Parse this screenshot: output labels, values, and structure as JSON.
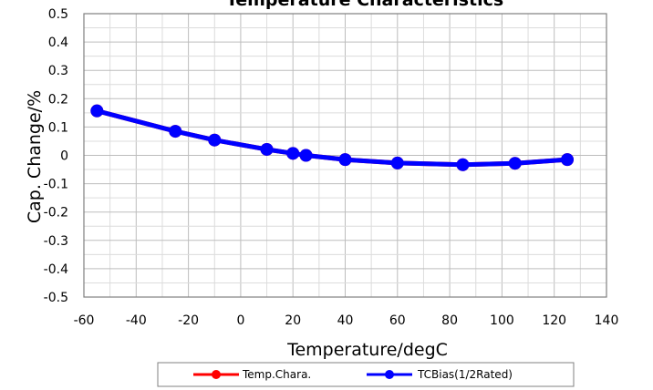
{
  "chart_data": {
    "type": "line",
    "title": "Temperature Characteristics",
    "xlabel": "Temperature/degC",
    "ylabel": "Cap. Change/%",
    "xlim": [
      -60,
      140
    ],
    "ylim": [
      -0.5,
      0.5
    ],
    "x_ticks": [
      -60,
      -40,
      -20,
      0,
      20,
      40,
      60,
      80,
      100,
      120,
      140
    ],
    "y_ticks": [
      0.5,
      0.4,
      0.3,
      0.2,
      0.1,
      0,
      -0.1,
      -0.2,
      -0.3,
      -0.4,
      -0.5
    ],
    "x_tick_labels": [
      "-60",
      "-40",
      "-20",
      "0",
      "20",
      "40",
      "60",
      "80",
      "100",
      "120",
      "140"
    ],
    "y_tick_labels": [
      "0.5",
      "0.4",
      "0.3",
      "0.2",
      "0.1",
      "0",
      "-0.1",
      "-0.2",
      "-0.3",
      "-0.4",
      "-0.5"
    ],
    "grid": true,
    "legend_position": "bottom",
    "series": [
      {
        "name": "Temp.Chara.",
        "color": "#ff0000",
        "x": [
          -55,
          -25,
          -10,
          10,
          20,
          25,
          40,
          60,
          85,
          105,
          125
        ],
        "y": [
          0.157,
          0.085,
          0.054,
          0.021,
          0.007,
          0.0,
          -0.015,
          -0.027,
          -0.033,
          -0.028,
          -0.015
        ]
      },
      {
        "name": "TCBias(1/2Rated)",
        "color": "#0000ff",
        "x": [
          -55,
          -25,
          -10,
          10,
          20,
          25,
          40,
          60,
          85,
          105,
          125
        ],
        "y": [
          0.157,
          0.085,
          0.054,
          0.021,
          0.007,
          0.0,
          -0.015,
          -0.027,
          -0.033,
          -0.028,
          -0.015
        ]
      }
    ]
  }
}
